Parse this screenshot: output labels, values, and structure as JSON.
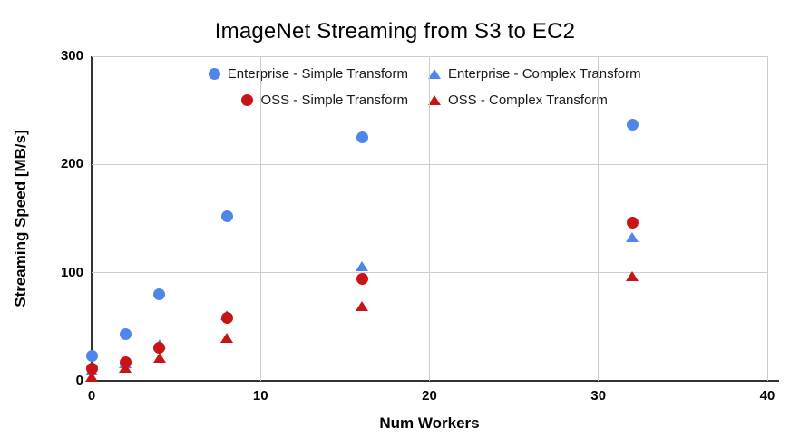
{
  "chart_data": {
    "type": "scatter",
    "title": "ImageNet Streaming from S3 to EC2",
    "xlabel": "Num Workers",
    "ylabel": "Streaming Speed [MB/s]",
    "xlim": [
      0,
      40
    ],
    "ylim": [
      0,
      300
    ],
    "x_ticks": [
      0,
      10,
      20,
      30,
      40
    ],
    "y_ticks": [
      0,
      100,
      200,
      300
    ],
    "grid": true,
    "legend_position": "top",
    "x": [
      0,
      2,
      4,
      8,
      16,
      32
    ],
    "series": [
      {
        "name": "Enterprise - Simple Transform",
        "marker": "circle",
        "color": "#4e86ec",
        "values": [
          23,
          43,
          80,
          152,
          225,
          237
        ]
      },
      {
        "name": "Enterprise - Complex Transform",
        "marker": "triangle",
        "color": "#4e86ec",
        "values": [
          10,
          16,
          34,
          61,
          106,
          133
        ]
      },
      {
        "name": "OSS - Simple Transform",
        "marker": "circle",
        "color": "#c81414",
        "values": [
          11,
          17,
          31,
          58,
          94,
          146
        ]
      },
      {
        "name": "OSS - Complex Transform",
        "marker": "triangle",
        "color": "#c81414",
        "values": [
          4,
          12,
          21,
          40,
          69,
          97
        ]
      }
    ]
  },
  "colors": {
    "enterprise_blue": "#4e86ec",
    "oss_red": "#c81414",
    "gridline": "#cccccc",
    "axis_line": "#333333",
    "text": "#000000"
  }
}
